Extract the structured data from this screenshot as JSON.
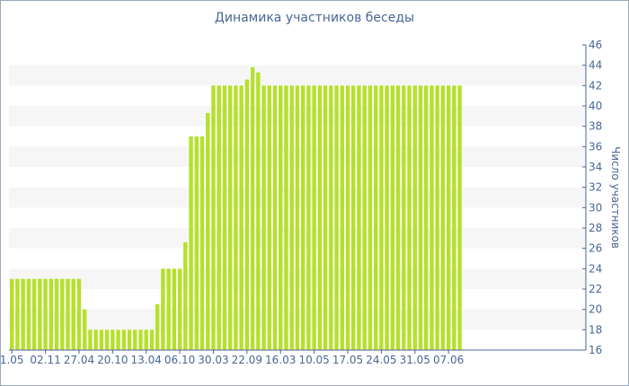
{
  "chart_data": {
    "type": "bar",
    "title": "Динамика участников беседы",
    "xlabel": "",
    "ylabel": "Число участников",
    "ylim": [
      16,
      46
    ],
    "yticks": [
      16,
      18,
      20,
      22,
      24,
      26,
      28,
      30,
      32,
      34,
      36,
      38,
      40,
      42,
      44,
      46
    ],
    "xticks": [
      {
        "label": "1.05",
        "index": 0
      },
      {
        "label": "02.11",
        "index": 6
      },
      {
        "label": "27.04",
        "index": 12
      },
      {
        "label": "20.10",
        "index": 18
      },
      {
        "label": "13.04",
        "index": 24
      },
      {
        "label": "06.10",
        "index": 30
      },
      {
        "label": "30.03",
        "index": 36
      },
      {
        "label": "22.09",
        "index": 42
      },
      {
        "label": "16.03",
        "index": 48
      },
      {
        "label": "10.05",
        "index": 54
      },
      {
        "label": "17.05",
        "index": 60
      },
      {
        "label": "24.05",
        "index": 66
      },
      {
        "label": "31.05",
        "index": 72
      },
      {
        "label": "07.06",
        "index": 78
      }
    ],
    "grid": "horizontal-bands",
    "bar_color": "#b5e02c",
    "values": [
      23,
      23,
      23,
      23,
      23,
      23,
      23,
      23,
      23,
      23,
      23,
      23,
      23,
      20,
      18,
      18,
      18,
      18,
      18,
      18,
      18,
      18,
      18,
      18,
      18,
      18,
      20.5,
      24,
      24,
      24,
      24,
      26.6,
      37,
      37,
      37,
      39.3,
      42,
      42,
      42,
      42,
      42,
      42,
      42.6,
      43.8,
      43.3,
      42,
      42,
      42,
      42,
      42,
      42,
      42,
      42,
      42,
      42,
      42,
      42,
      42,
      42,
      42,
      42,
      42,
      42,
      42,
      42,
      42,
      42,
      42,
      42,
      42,
      42,
      42,
      42,
      42,
      42,
      42,
      42,
      42,
      42,
      42,
      42
    ]
  }
}
